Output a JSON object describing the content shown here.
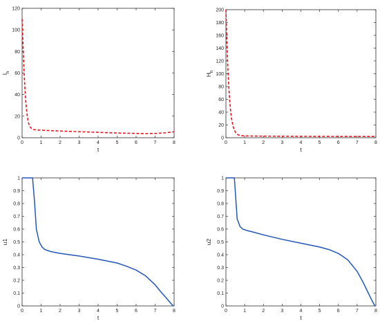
{
  "chart_data": [
    {
      "type": "line",
      "xlabel": "t",
      "ylabel": "I",
      "ylabel_sub": "h",
      "xlim": [
        0,
        8
      ],
      "ylim": [
        0,
        120
      ],
      "xticks": [
        0,
        1,
        2,
        3,
        4,
        5,
        6,
        7,
        8
      ],
      "yticks": [
        0,
        20,
        40,
        60,
        80,
        100,
        120
      ],
      "grid": false,
      "series": [
        {
          "style": "dashed",
          "color": "#e8141d",
          "x": [
            0,
            0.05,
            0.1,
            0.15,
            0.2,
            0.25,
            0.3,
            0.35,
            0.4,
            0.5,
            0.6,
            0.8,
            1.0,
            1.5,
            2.0,
            3.0,
            4.0,
            5.0,
            6.0,
            6.5,
            7.0,
            7.5,
            8.0
          ],
          "y": [
            110,
            85,
            62,
            45,
            32,
            23,
            17,
            13,
            10.5,
            8.5,
            7.6,
            7.2,
            7,
            6.6,
            6.2,
            5.6,
            5,
            4.4,
            4,
            3.9,
            4,
            4.5,
            5.5
          ]
        }
      ]
    },
    {
      "type": "line",
      "xlabel": "t",
      "ylabel": "H",
      "ylabel_sub": "h",
      "xlim": [
        0,
        8
      ],
      "ylim": [
        0,
        200
      ],
      "xticks": [
        0,
        1,
        2,
        3,
        4,
        5,
        6,
        7,
        8
      ],
      "yticks": [
        0,
        20,
        40,
        60,
        80,
        100,
        120,
        140,
        160,
        180,
        200
      ],
      "grid": false,
      "series": [
        {
          "style": "dashed",
          "color": "#e8141d",
          "x": [
            0,
            0.05,
            0.1,
            0.15,
            0.2,
            0.25,
            0.3,
            0.35,
            0.4,
            0.5,
            0.6,
            0.7,
            0.8,
            1.0,
            2.0,
            4.0,
            6.0,
            8.0
          ],
          "y": [
            200,
            150,
            110,
            80,
            58,
            42,
            30,
            22,
            16,
            9,
            5.5,
            4,
            3.2,
            2.8,
            2.5,
            2.2,
            2,
            2
          ]
        }
      ]
    },
    {
      "type": "line",
      "xlabel": "t",
      "ylabel": "u1",
      "xlim": [
        0,
        8
      ],
      "ylim": [
        0,
        1
      ],
      "xticks": [
        0,
        1,
        2,
        3,
        4,
        5,
        6,
        7,
        8
      ],
      "yticks": [
        0,
        0.1,
        0.2,
        0.3,
        0.4,
        0.5,
        0.6,
        0.7,
        0.8,
        0.9,
        1
      ],
      "grid": false,
      "series": [
        {
          "style": "solid",
          "color": "#2155b8",
          "x": [
            0,
            0.55,
            0.65,
            0.75,
            0.9,
            1.05,
            1.2,
            1.5,
            2,
            3,
            4,
            5,
            5.5,
            6,
            6.5,
            7,
            7.3,
            7.6,
            7.8,
            7.95
          ],
          "y": [
            1,
            1,
            0.82,
            0.6,
            0.5,
            0.46,
            0.44,
            0.425,
            0.41,
            0.39,
            0.365,
            0.335,
            0.31,
            0.28,
            0.235,
            0.165,
            0.11,
            0.06,
            0.025,
            0
          ]
        }
      ]
    },
    {
      "type": "line",
      "xlabel": "t",
      "ylabel": "u2",
      "xlim": [
        0,
        8
      ],
      "ylim": [
        0,
        1
      ],
      "xticks": [
        0,
        1,
        2,
        3,
        4,
        5,
        6,
        7,
        8
      ],
      "yticks": [
        0,
        0.1,
        0.2,
        0.3,
        0.4,
        0.5,
        0.6,
        0.7,
        0.8,
        0.9,
        1
      ],
      "grid": false,
      "series": [
        {
          "style": "solid",
          "color": "#2155b8",
          "x": [
            0,
            0.45,
            0.6,
            0.75,
            0.9,
            1.1,
            1.5,
            2,
            3,
            4,
            5,
            5.5,
            6,
            6.5,
            7,
            7.3,
            7.6,
            7.8,
            7.95
          ],
          "y": [
            1,
            1,
            0.68,
            0.62,
            0.6,
            0.59,
            0.575,
            0.555,
            0.52,
            0.49,
            0.46,
            0.44,
            0.41,
            0.36,
            0.27,
            0.19,
            0.1,
            0.04,
            0
          ]
        }
      ]
    }
  ]
}
